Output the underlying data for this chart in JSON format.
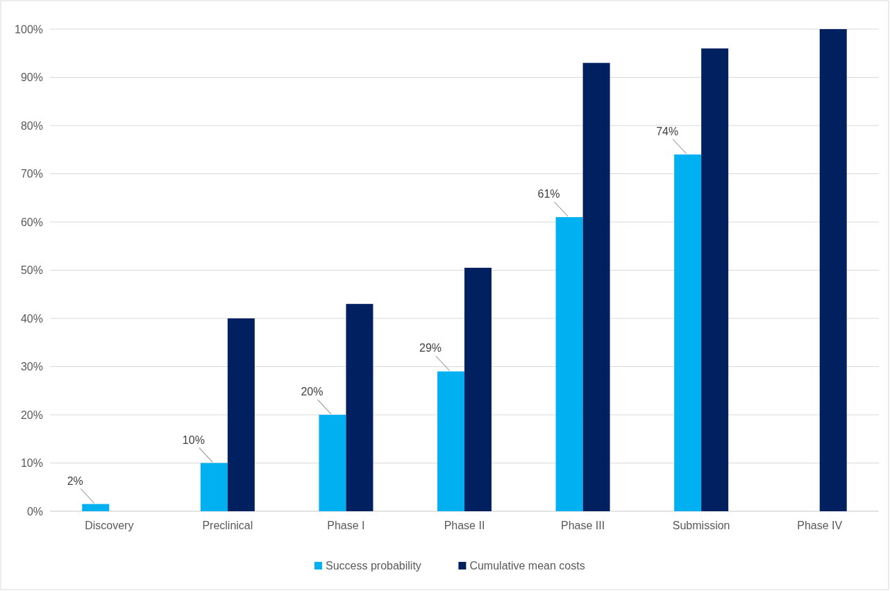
{
  "chart_data": {
    "type": "bar",
    "categories": [
      "Discovery",
      "Preclinical",
      "Phase I",
      "Phase II",
      "Phase III",
      "Submission",
      "Phase IV"
    ],
    "series": [
      {
        "name": "Success probability",
        "color": "#00b0f0",
        "values": [
          1.5,
          10,
          20,
          29,
          61,
          74,
          null
        ],
        "value_labels": [
          "2%",
          "10%",
          "20%",
          "29%",
          "61%",
          "74%",
          null
        ]
      },
      {
        "name": "Cumulative mean costs",
        "color": "#002060",
        "values": [
          null,
          40,
          43,
          50.5,
          93,
          96,
          100
        ]
      }
    ],
    "ylim": [
      0,
      100
    ],
    "yticks": [
      {
        "value": 0,
        "label": "0%"
      },
      {
        "value": 10,
        "label": "10%"
      },
      {
        "value": 20,
        "label": "20%"
      },
      {
        "value": 30,
        "label": "30%"
      },
      {
        "value": 40,
        "label": "40%"
      },
      {
        "value": 50,
        "label": "50%"
      },
      {
        "value": 60,
        "label": "60%"
      },
      {
        "value": 70,
        "label": "70%"
      },
      {
        "value": 80,
        "label": "80%"
      },
      {
        "value": 90,
        "label": "90%"
      },
      {
        "value": 100,
        "label": "100%"
      }
    ],
    "grid": "y",
    "legend": "bottom"
  }
}
